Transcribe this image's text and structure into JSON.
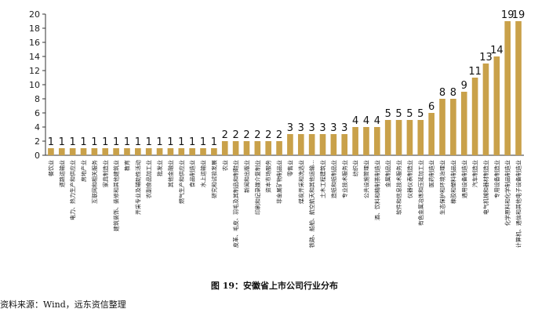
{
  "caption": "图 19：安徽省上市公司行业分布",
  "source": "资料来源：Wind，远东资信整理",
  "chart_data": {
    "type": "bar",
    "ylim": [
      0,
      20
    ],
    "yticks": [
      0,
      2,
      4,
      6,
      8,
      10,
      12,
      14,
      16,
      18,
      20
    ],
    "grid": false,
    "bar_color": "#C9A14A",
    "categories": [
      "餐饮业",
      "道路运输业",
      "电力、热力生产和供应业",
      "房地产业",
      "互联网和相关服务",
      "家具制造业",
      "建筑装饰、装修和其他建筑业",
      "教育",
      "开采专业及辅助性活动",
      "农副食品加工业",
      "批发业",
      "其他金融业",
      "燃气生产和供应业",
      "食品制造业",
      "水上运输业",
      "研究和试验发展",
      "农业",
      "皮革、毛皮、羽毛及其制品和制鞋业",
      "新闻和出版业",
      "印刷和记录媒介复制业",
      "资本市场服务",
      "非金属矿物制品业",
      "零售业",
      "煤炭开采和洗选业",
      "铁路、船舶、航空航天和其他运输…",
      "土木工程建筑业",
      "造纸和纸制品业",
      "专业技术服务业",
      "纺织业",
      "公共设施管理业",
      "酒、饮料和精制茶制造业",
      "金属制品业",
      "软件和信息技术服务业",
      "仪器仪表制造业",
      "有色金属冶炼和压延加工业",
      "医药制造业",
      "生态保护和环境治理业",
      "橡胶和塑料制品业",
      "通用设备制造业",
      "汽车制造业",
      "电气机械和器材制造业",
      "专用设备制造业",
      "化学原料和化学制品制造业",
      "计算机、通信和其他电子设备制造业"
    ],
    "values": [
      1,
      1,
      1,
      1,
      1,
      1,
      1,
      1,
      1,
      1,
      1,
      1,
      1,
      1,
      1,
      1,
      2,
      2,
      2,
      2,
      2,
      2,
      3,
      3,
      3,
      3,
      3,
      3,
      4,
      4,
      4,
      5,
      5,
      5,
      5,
      6,
      8,
      8,
      9,
      11,
      13,
      14,
      19,
      19
    ]
  }
}
